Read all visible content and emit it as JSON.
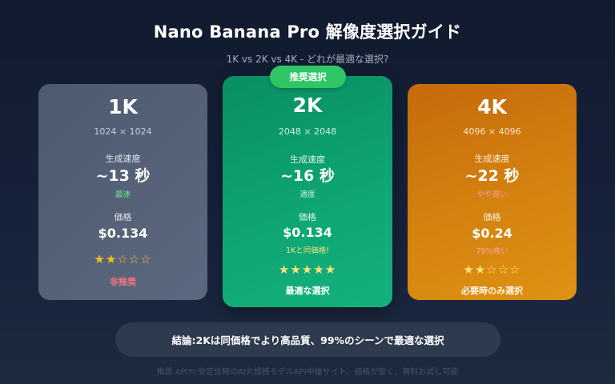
{
  "header": {
    "title": "Nano Banana Pro 解像度選択ガイド",
    "subtitle": "1K vs 2K vs 4K - どれが最適な選択?"
  },
  "badge": {
    "label": "推奨選択"
  },
  "cards": [
    {
      "name": "1K",
      "resolution": "1024 × 1024",
      "speed_label": "生成速度",
      "speed_value": "~13 秒",
      "speed_note": "最速",
      "price_label": "価格",
      "price_value": "$0.134",
      "price_note": "",
      "stars": "★★☆☆☆",
      "rating": 2,
      "verdict": "非推奨",
      "color": "#56627a"
    },
    {
      "name": "2K",
      "resolution": "2048 × 2048",
      "speed_label": "生成速度",
      "speed_value": "~16 秒",
      "speed_note": "適度",
      "price_label": "価格",
      "price_value": "$0.134",
      "price_note": "1Kと同価格!",
      "stars": "★★★★★",
      "rating": 5,
      "verdict": "最適な選択",
      "color": "#0fa774"
    },
    {
      "name": "4K",
      "resolution": "4096 × 4096",
      "speed_label": "生成速度",
      "speed_value": "~22 秒",
      "speed_note": "やや遅い",
      "price_label": "価格",
      "price_value": "$0.24",
      "price_note": "79%高い",
      "stars": "★★☆☆☆",
      "rating": 2,
      "verdict": "必要時のみ選択",
      "color": "#d4820f"
    }
  ],
  "conclusion": {
    "text": "結論:2Kは同価格でより高品質、99%のシーンで最適な選択"
  },
  "footer": {
    "text": "推奨 APIYI:安定信頼のAI大規模モデルAPI中継サイト、価格が安く、無料お試し可能"
  },
  "colors": {
    "background": "#131c30",
    "badge": "#2fc766",
    "star": "#f5c21b",
    "not_recommended": "#f2767c"
  }
}
